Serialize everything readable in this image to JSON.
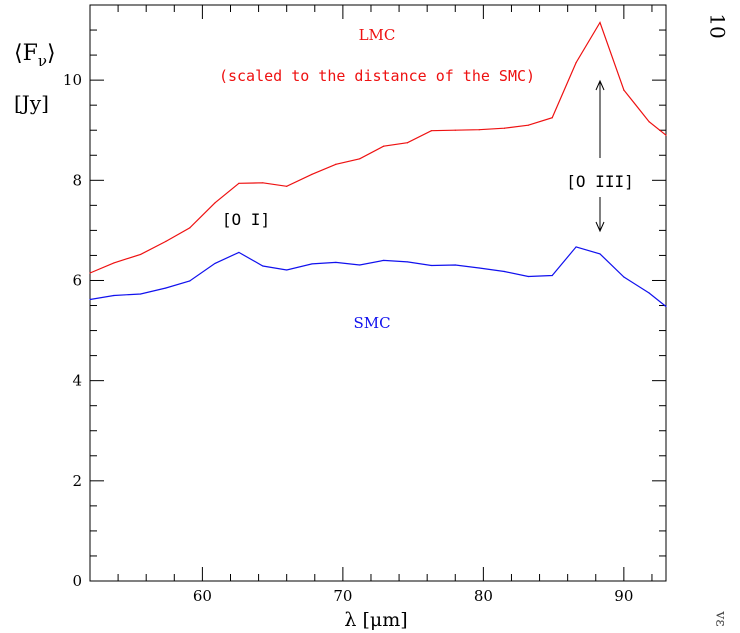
{
  "page": {
    "page_number": "10",
    "margin_fragment": "vε"
  },
  "chart_data": {
    "type": "line",
    "xlabel": "λ [μm]",
    "ylabel_line1": "⟨F",
    "ylabel_sub": "ν",
    "ylabel_close": "⟩",
    "ylabel_line2": "[Jy]",
    "xlim": [
      52,
      93
    ],
    "ylim": [
      0,
      11.5
    ],
    "x_ticks": [
      60,
      70,
      80,
      90
    ],
    "y_ticks": [
      0,
      2,
      4,
      6,
      8,
      10
    ],
    "series": [
      {
        "name": "LMC",
        "color": "#ee1111",
        "x": [
          52,
          53.7,
          55.6,
          57.4,
          59.1,
          60.9,
          62.6,
          64.3,
          66.0,
          67.8,
          69.5,
          71.2,
          72.9,
          74.6,
          76.3,
          78.0,
          79.7,
          81.5,
          83.2,
          84.9,
          86.6,
          88.3,
          90.0,
          91.8,
          93
        ],
        "values": [
          6.15,
          6.35,
          6.52,
          6.78,
          7.05,
          7.55,
          7.94,
          7.95,
          7.88,
          8.12,
          8.32,
          8.43,
          8.68,
          8.75,
          8.99,
          9.0,
          9.01,
          9.04,
          9.1,
          9.25,
          10.35,
          11.15,
          9.8,
          9.17,
          8.9
        ]
      },
      {
        "name": "SMC",
        "color": "#1111ee",
        "x": [
          52,
          53.7,
          55.6,
          57.4,
          59.1,
          60.9,
          62.6,
          64.3,
          66.0,
          67.8,
          69.5,
          71.2,
          72.9,
          74.6,
          76.3,
          78.0,
          79.7,
          81.5,
          83.2,
          84.9,
          86.6,
          88.3,
          90.0,
          91.8,
          93
        ],
        "values": [
          5.62,
          5.7,
          5.73,
          5.85,
          5.99,
          6.34,
          6.56,
          6.29,
          6.21,
          6.33,
          6.36,
          6.31,
          6.4,
          6.37,
          6.3,
          6.31,
          6.25,
          6.18,
          6.08,
          6.1,
          6.67,
          6.53,
          6.07,
          5.75,
          5.48
        ]
      }
    ],
    "annotations": {
      "lmc_label": "LMC",
      "lmc_note": "(scaled to the distance of the SMC)",
      "smc_label": "SMC",
      "oi_label": "[O I]",
      "oiii_label": "[O III]"
    }
  }
}
